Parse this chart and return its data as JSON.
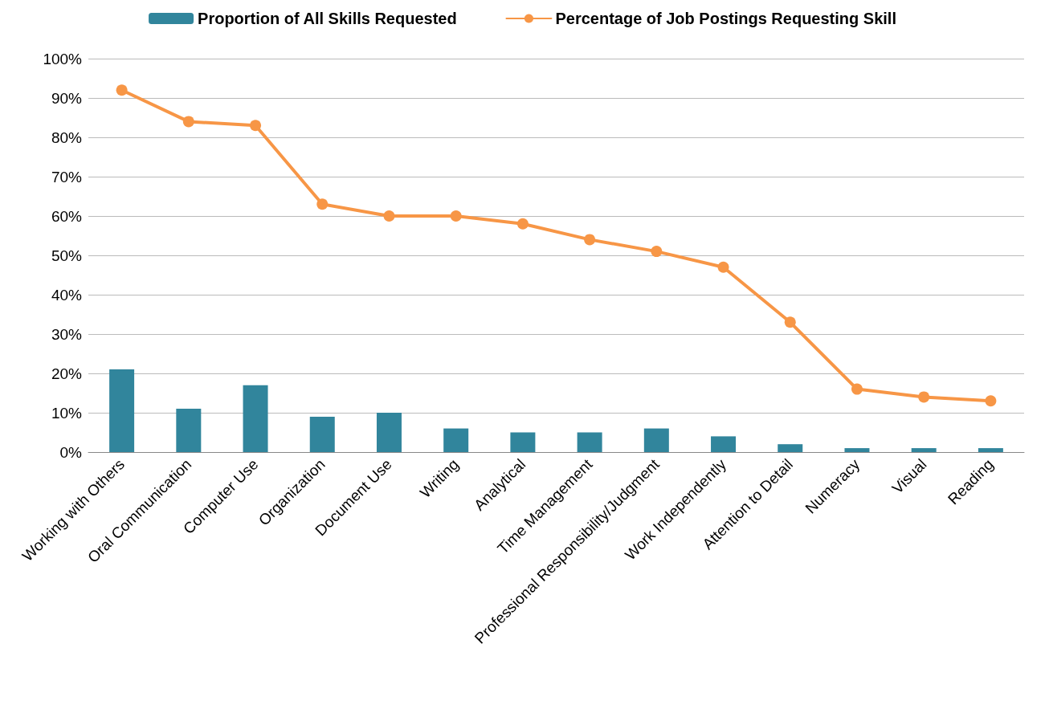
{
  "chart_data": {
    "type": "bar",
    "categories": [
      "Working with Others",
      "Oral Communication",
      "Computer Use",
      "Organization",
      "Document Use",
      "Writing",
      "Analytical",
      "Time Management",
      "Professional Responsibility/Judgment",
      "Work Independently",
      "Attention to Detail",
      "Numeracy",
      "Visual",
      "Reading"
    ],
    "series": [
      {
        "name": "Proportion of All Skills Requested",
        "color": "#31859c",
        "values": [
          21,
          11,
          17,
          9,
          10,
          6,
          5,
          5,
          6,
          4,
          2,
          1,
          1,
          1
        ]
      },
      {
        "name": "Percentage of Job Postings Requesting Skill",
        "type": "line",
        "color": "#f79646",
        "values": [
          92,
          84,
          83,
          63,
          60,
          60,
          58,
          54,
          51,
          47,
          33,
          16,
          14,
          13
        ]
      }
    ],
    "ylim": [
      0,
      100
    ],
    "yticks": [
      {
        "value": 0,
        "label": "0%"
      },
      {
        "value": 10,
        "label": "10%"
      },
      {
        "value": 20,
        "label": "20%"
      },
      {
        "value": 30,
        "label": "30%"
      },
      {
        "value": 40,
        "label": "40%"
      },
      {
        "value": 50,
        "label": "50%"
      },
      {
        "value": 60,
        "label": "60%"
      },
      {
        "value": 70,
        "label": "70%"
      },
      {
        "value": 80,
        "label": "80%"
      },
      {
        "value": 90,
        "label": "90%"
      },
      {
        "value": 100,
        "label": "100%"
      }
    ],
    "grid": "y",
    "legend": "top",
    "marker": "circle",
    "line_style": "solid"
  }
}
